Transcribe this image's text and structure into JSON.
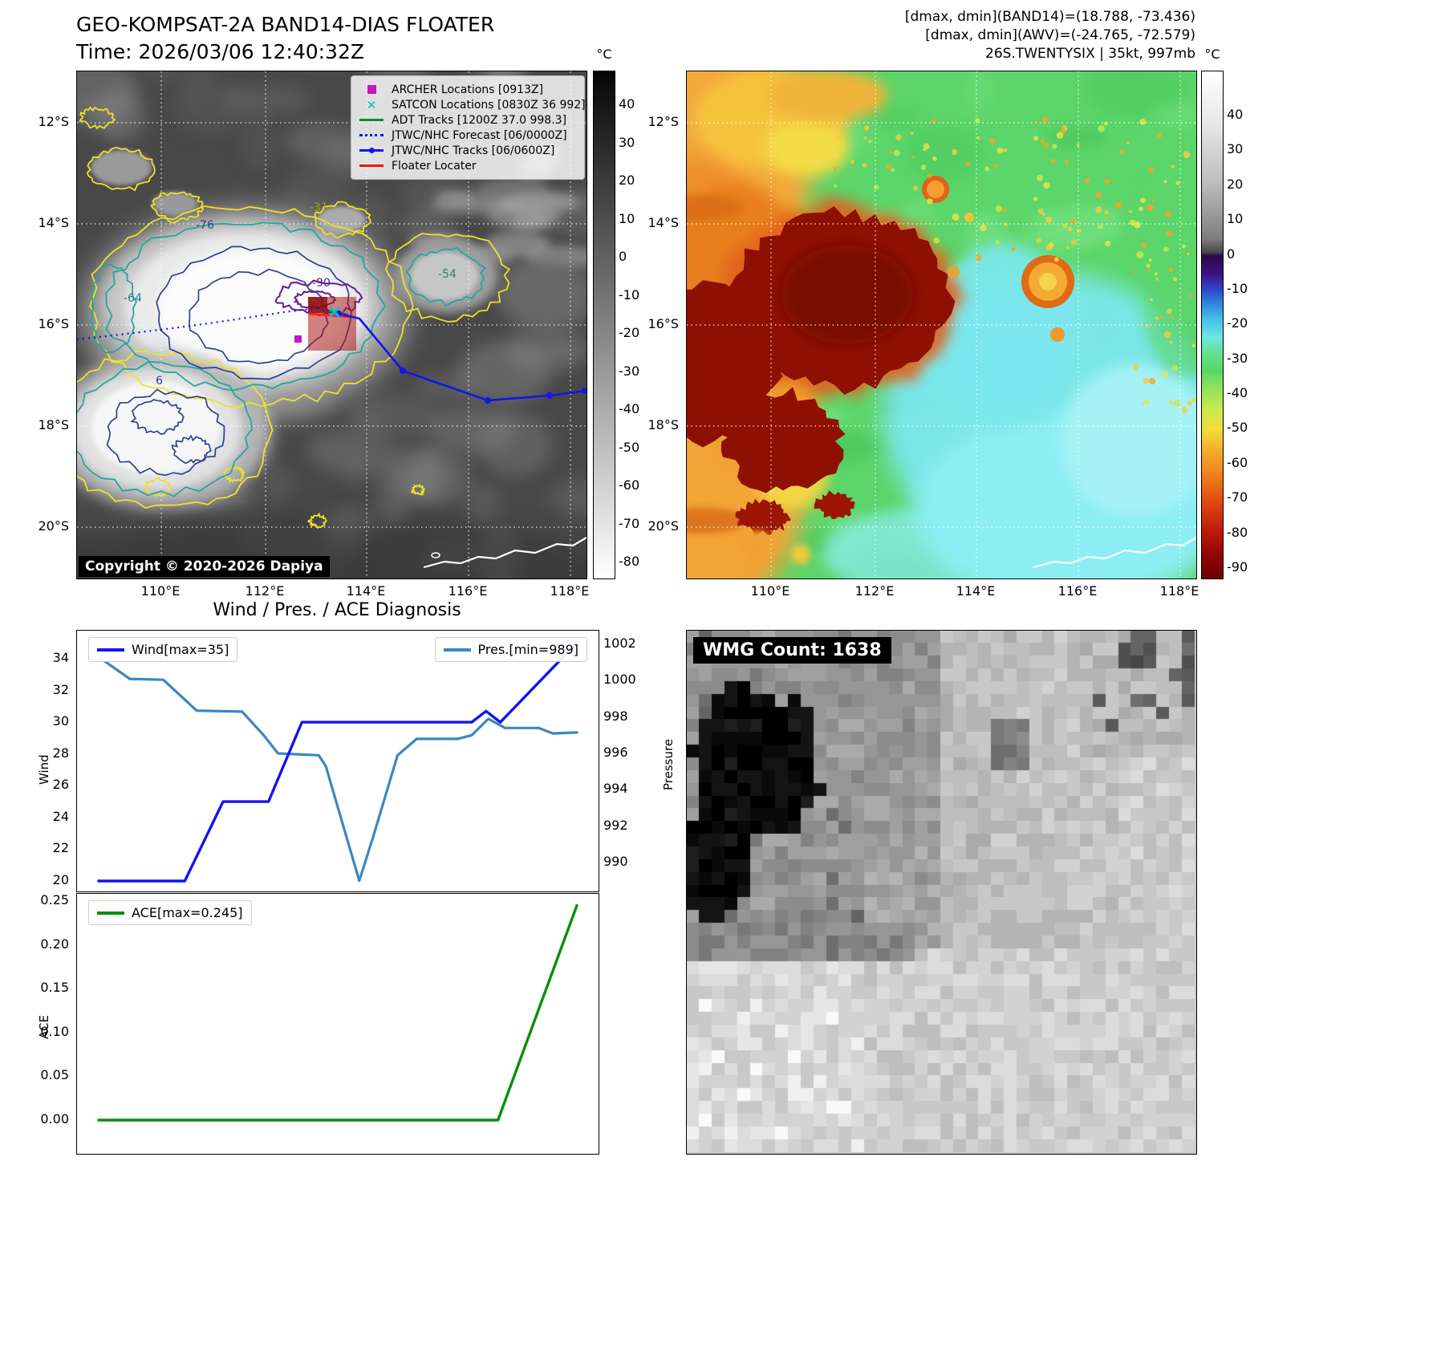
{
  "panel_tl": {
    "title": "GEO-KOMPSAT-2A BAND14-DIAS FLOATER",
    "time_line": "Time: 2026/03/06 12:40:32Z",
    "copyright": "Copyright © 2020-2026 Dapiya",
    "legend_items": [
      {
        "label": "ARCHER Locations [0913Z]",
        "marker": "square",
        "color": "#c019c0"
      },
      {
        "label": "SATCON Locations [0830Z 36 992]",
        "marker": "x",
        "color": "#00bcbc"
      },
      {
        "label": "ADT Tracks [1200Z 37.0 998.3]",
        "marker": "line",
        "color": "#0a8f2f"
      },
      {
        "label": "JTWC/NHC Forecast [06/0000Z]",
        "marker": "dotted",
        "color": "#1414ee"
      },
      {
        "label": "JTWC/NHC Tracks [06/0600Z]",
        "marker": "line-dot",
        "color": "#1414ee"
      },
      {
        "label": "Floater Locater",
        "marker": "line",
        "color": "#ea1515"
      }
    ],
    "colorbar": {
      "unit": "°C",
      "ticks": [
        "40",
        "30",
        "20",
        "10",
        "0",
        "-10",
        "-20",
        "-30",
        "-40",
        "-50",
        "-60",
        "-70",
        "-80"
      ]
    },
    "x_tick_labels": [
      "110°E",
      "112°E",
      "114°E",
      "116°E",
      "118°E"
    ],
    "y_tick_labels": [
      "12°S",
      "14°S",
      "16°S",
      "18°S",
      "20°S"
    ],
    "contour_labels": [
      "-76",
      "-90",
      "-64",
      "-54",
      "-31",
      "6"
    ]
  },
  "panel_tr": {
    "header_lines": [
      "[dmax, dmin](BAND14)=(18.788, -73.436)",
      "[dmax, dmin](AWV)=(-24.765, -72.579)",
      "26S.TWENTYSIX | 35kt, 997mb"
    ],
    "colorbar": {
      "unit": "°C",
      "ticks": [
        "40",
        "30",
        "20",
        "10",
        "0",
        "-10",
        "-20",
        "-30",
        "-40",
        "-50",
        "-60",
        "-70",
        "-80",
        "-90"
      ]
    },
    "x_tick_labels": [
      "110°E",
      "112°E",
      "114°E",
      "116°E",
      "118°E"
    ],
    "y_tick_labels": [
      "12°S",
      "14°S",
      "16°S",
      "18°S",
      "20°S"
    ]
  },
  "diagnosis": {
    "title": "Wind / Pres. / ACE Diagnosis",
    "wind_legend": "Wind[max=35]",
    "pres_legend": "Pres.[min=989]",
    "ace_legend": "ACE[max=0.245]",
    "wind_axis_label": "Wind",
    "pressure_axis_label": "Pressure",
    "ace_axis_label": "ACE",
    "wind_ticks": [
      "34",
      "32",
      "30",
      "28",
      "26",
      "24",
      "22",
      "20"
    ],
    "pressure_ticks": [
      "1002",
      "1000",
      "998",
      "996",
      "994",
      "992",
      "990"
    ],
    "ace_ticks": [
      "0.25",
      "0.20",
      "0.15",
      "0.10",
      "0.05",
      "0.00"
    ]
  },
  "panel_br": {
    "label": "WMG Count: 1638"
  },
  "colors": {
    "wind_line": "#1414ee",
    "pressure_line": "#3b87c0",
    "ace_line": "#0a8f0a",
    "band14_gradient": [
      [
        0,
        "#050505"
      ],
      [
        1,
        "#ffffff"
      ]
    ],
    "awv_gradient": [
      [
        0,
        "#ffffff"
      ],
      [
        0.1,
        "#e8e8e8"
      ],
      [
        0.22,
        "#bdbdbd"
      ],
      [
        0.33,
        "#7d7d7d"
      ],
      [
        0.356,
        "#4a4a4a"
      ],
      [
        0.364,
        "#2e0846"
      ],
      [
        0.4,
        "#3c1582"
      ],
      [
        0.428,
        "#2e43c9"
      ],
      [
        0.458,
        "#2f86dd"
      ],
      [
        0.49,
        "#46c2e8"
      ],
      [
        0.525,
        "#6fe6e2"
      ],
      [
        0.556,
        "#67df8f"
      ],
      [
        0.59,
        "#55d867"
      ],
      [
        0.625,
        "#8fe35c"
      ],
      [
        0.665,
        "#c6ea4f"
      ],
      [
        0.705,
        "#f0df3a"
      ],
      [
        0.75,
        "#f3ab2a"
      ],
      [
        0.8,
        "#ee7c1c"
      ],
      [
        0.85,
        "#df4711"
      ],
      [
        0.905,
        "#bd1c0a"
      ],
      [
        0.955,
        "#8f0503"
      ],
      [
        1,
        "#6b0000"
      ]
    ]
  },
  "chart_data": [
    {
      "type": "line",
      "title": "Wind / Pres. / ACE Diagnosis",
      "x_axis": "normalized time (0-1)",
      "legend_position": "top",
      "series": [
        {
          "name": "Wind[max=35]",
          "axis": "left",
          "x": [
            0,
            0.18,
            0.26,
            0.355,
            0.425,
            0.78,
            0.81,
            0.84,
            1.0
          ],
          "y": [
            20,
            20,
            25,
            25,
            30,
            30,
            30.7,
            30,
            35
          ]
        },
        {
          "name": "Pres.[min=989]",
          "axis": "right",
          "x": [
            0,
            0.065,
            0.135,
            0.205,
            0.3,
            0.345,
            0.375,
            0.46,
            0.475,
            0.545,
            0.575,
            0.625,
            0.665,
            0.75,
            0.78,
            0.815,
            0.85,
            0.92,
            0.95,
            1.0
          ],
          "y": [
            1001.3,
            1000.1,
            1000.05,
            998.35,
            998.3,
            997.0,
            996.0,
            995.9,
            995.3,
            989.0,
            991.5,
            995.9,
            996.8,
            996.8,
            997.0,
            997.9,
            997.4,
            997.4,
            997.1,
            997.15
          ]
        }
      ],
      "left_axis": {
        "label": "Wind",
        "ticks": [
          20,
          22,
          24,
          26,
          28,
          30,
          32,
          34
        ],
        "max_annotation": 35
      },
      "right_axis": {
        "label": "Pressure",
        "ticks": [
          990,
          992,
          994,
          996,
          998,
          1000,
          1002
        ],
        "min_annotation": 989
      }
    },
    {
      "type": "line",
      "series": [
        {
          "name": "ACE[max=0.245]",
          "x": [
            0,
            0.835,
            1.0
          ],
          "y": [
            0,
            0,
            0.245
          ]
        }
      ],
      "left_axis": {
        "label": "ACE",
        "ticks": [
          0,
          0.05,
          0.1,
          0.15,
          0.2,
          0.25
        ],
        "max_annotation": 0.245
      }
    }
  ]
}
